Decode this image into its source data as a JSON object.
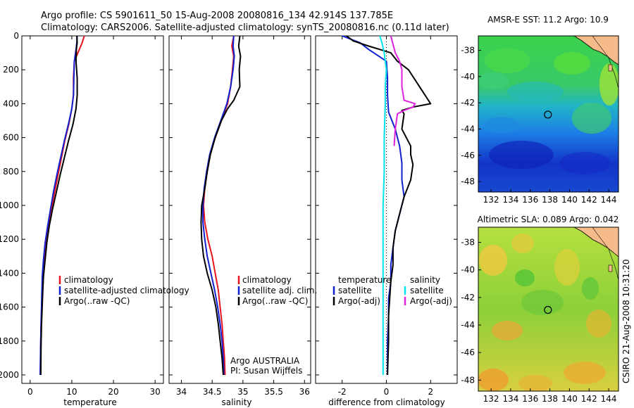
{
  "header": {
    "line1": "Argo profile: CS 5901611_50 15-Aug-2008 20080816_134 42.914S 137.785E",
    "line2": "Climatology: CARS2006. Satellite-adjusted climatology: synTS_20080816.nc (0.11d later)"
  },
  "side_label": "CSIRO 21-Aug-2008 10:31:20",
  "colors": {
    "red": "#e8141e",
    "blue": "#1020d0",
    "black": "#000000",
    "cyan": "#00e5ee",
    "magenta": "#e020e0",
    "land": "#f6bb8a"
  },
  "chart_data": [
    {
      "type": "line",
      "xlabel": "temperature",
      "xlim": [
        -2,
        32
      ],
      "ylim": [
        2050,
        0
      ],
      "xticks": [
        0,
        10,
        20,
        30
      ],
      "yticks": [
        0,
        200,
        400,
        600,
        800,
        1000,
        1200,
        1400,
        1600,
        1800,
        2000
      ],
      "series": [
        {
          "name": "climatology",
          "color": "#e8141e",
          "points": [
            [
              13,
              0
            ],
            [
              12.5,
              40
            ],
            [
              11.8,
              80
            ],
            [
              10.6,
              150
            ],
            [
              10.4,
              250
            ],
            [
              10.4,
              350
            ],
            [
              10,
              430
            ],
            [
              9.3,
              520
            ],
            [
              8.3,
              620
            ],
            [
              7.5,
              720
            ],
            [
              6.7,
              820
            ],
            [
              5.9,
              920
            ],
            [
              5.1,
              1020
            ],
            [
              4.4,
              1120
            ],
            [
              3.8,
              1220
            ],
            [
              3.4,
              1320
            ],
            [
              3.1,
              1420
            ],
            [
              2.9,
              1520
            ],
            [
              2.75,
              1620
            ],
            [
              2.6,
              1720
            ],
            [
              2.5,
              1850
            ],
            [
              2.45,
              2000
            ]
          ]
        },
        {
          "name": "satellite-adjusted climatology",
          "color": "#1020d0",
          "points": [
            [
              11.3,
              0
            ],
            [
              11.2,
              40
            ],
            [
              11,
              80
            ],
            [
              10.6,
              150
            ],
            [
              10.5,
              250
            ],
            [
              10.4,
              350
            ],
            [
              10,
              430
            ],
            [
              9.2,
              520
            ],
            [
              8.2,
              620
            ],
            [
              7.3,
              720
            ],
            [
              6.4,
              820
            ],
            [
              5.6,
              920
            ],
            [
              4.9,
              1020
            ],
            [
              4.2,
              1120
            ],
            [
              3.6,
              1220
            ],
            [
              3.2,
              1320
            ],
            [
              2.9,
              1420
            ],
            [
              2.8,
              1520
            ],
            [
              2.7,
              1620
            ],
            [
              2.6,
              1720
            ],
            [
              2.5,
              1850
            ],
            [
              2.4,
              2000
            ]
          ]
        },
        {
          "name": "Argo(..raw -QC)",
          "color": "#000000",
          "points": [
            [
              11.2,
              0
            ],
            [
              11.3,
              40
            ],
            [
              11.1,
              80
            ],
            [
              11,
              150
            ],
            [
              11.3,
              250
            ],
            [
              11.3,
              350
            ],
            [
              11,
              430
            ],
            [
              10.3,
              520
            ],
            [
              9.2,
              620
            ],
            [
              8.2,
              720
            ],
            [
              7.2,
              820
            ],
            [
              6.3,
              920
            ],
            [
              5.4,
              1020
            ],
            [
              4.6,
              1120
            ],
            [
              4,
              1220
            ],
            [
              3.6,
              1320
            ],
            [
              3.2,
              1420
            ],
            [
              3,
              1520
            ],
            [
              2.85,
              1620
            ],
            [
              2.7,
              1720
            ],
            [
              2.6,
              1850
            ],
            [
              2.55,
              2000
            ]
          ]
        }
      ]
    },
    {
      "type": "line",
      "xlabel": "salinity",
      "xlim": [
        33.8,
        36.1
      ],
      "ylim": [
        2050,
        0
      ],
      "xticks": [
        34,
        34.5,
        35,
        35.5,
        36
      ],
      "xtick_labels": [
        "34",
        "34.5",
        "35",
        "35.5",
        "36"
      ],
      "series": [
        {
          "name": "climatology",
          "color": "#e8141e",
          "points": [
            [
              34.85,
              0
            ],
            [
              34.82,
              60
            ],
            [
              34.85,
              120
            ],
            [
              34.83,
              200
            ],
            [
              34.8,
              300
            ],
            [
              34.75,
              400
            ],
            [
              34.65,
              500
            ],
            [
              34.55,
              600
            ],
            [
              34.47,
              700
            ],
            [
              34.42,
              800
            ],
            [
              34.38,
              900
            ],
            [
              34.36,
              1000
            ],
            [
              34.38,
              1100
            ],
            [
              34.43,
              1200
            ],
            [
              34.5,
              1300
            ],
            [
              34.55,
              1400
            ],
            [
              34.6,
              1500
            ],
            [
              34.63,
              1600
            ],
            [
              34.66,
              1700
            ],
            [
              34.68,
              1800
            ],
            [
              34.7,
              1900
            ],
            [
              34.71,
              2000
            ]
          ]
        },
        {
          "name": "satellite adj. clim.",
          "color": "#1020d0",
          "points": [
            [
              34.85,
              0
            ],
            [
              34.84,
              60
            ],
            [
              34.86,
              120
            ],
            [
              34.84,
              200
            ],
            [
              34.8,
              300
            ],
            [
              34.74,
              400
            ],
            [
              34.64,
              500
            ],
            [
              34.54,
              600
            ],
            [
              34.46,
              700
            ],
            [
              34.41,
              800
            ],
            [
              34.37,
              900
            ],
            [
              34.35,
              1000
            ],
            [
              34.35,
              1100
            ],
            [
              34.38,
              1200
            ],
            [
              34.42,
              1300
            ],
            [
              34.48,
              1400
            ],
            [
              34.54,
              1500
            ],
            [
              34.59,
              1600
            ],
            [
              34.63,
              1700
            ],
            [
              34.66,
              1800
            ],
            [
              34.68,
              1900
            ],
            [
              34.69,
              2000
            ]
          ]
        },
        {
          "name": "Argo(..raw -QC)",
          "color": "#000000",
          "points": [
            [
              34.95,
              0
            ],
            [
              34.93,
              60
            ],
            [
              34.96,
              120
            ],
            [
              34.94,
              200
            ],
            [
              34.95,
              300
            ],
            [
              34.85,
              380
            ],
            [
              34.75,
              430
            ],
            [
              34.65,
              500
            ],
            [
              34.55,
              600
            ],
            [
              34.47,
              700
            ],
            [
              34.42,
              800
            ],
            [
              34.38,
              900
            ],
            [
              34.33,
              1000
            ],
            [
              34.32,
              1100
            ],
            [
              34.33,
              1200
            ],
            [
              34.36,
              1300
            ],
            [
              34.42,
              1400
            ],
            [
              34.5,
              1500
            ],
            [
              34.56,
              1600
            ],
            [
              34.6,
              1700
            ],
            [
              34.63,
              1800
            ],
            [
              34.66,
              1900
            ],
            [
              34.68,
              2000
            ]
          ]
        }
      ],
      "annotation": [
        "Argo AUSTRALIA",
        "PI: Susan Wijffels"
      ]
    },
    {
      "type": "line",
      "xlabel": "difference from climatology",
      "xlim": [
        -3.2,
        3.2
      ],
      "ylim": [
        2050,
        0
      ],
      "xticks": [
        -2,
        0,
        2
      ],
      "legend_groups": [
        {
          "title": "temperature",
          "entries": [
            {
              "label": "satellite",
              "color": "#1020d0"
            },
            {
              "label": "Argo(-adj)",
              "color": "#000000"
            }
          ]
        },
        {
          "title": "salinity",
          "entries": [
            {
              "label": "satellite",
              "color": "#00e5ee"
            },
            {
              "label": "Argo(-adj)",
              "color": "#e020e0"
            }
          ]
        }
      ],
      "series": [
        {
          "name": "temperature satellite",
          "color": "#1020d0",
          "points": [
            [
              -2,
              0
            ],
            [
              -1.2,
              40
            ],
            [
              -0.8,
              80
            ],
            [
              0,
              150
            ],
            [
              0.05,
              250
            ],
            [
              0.05,
              350
            ],
            [
              0.1,
              450
            ],
            [
              0.4,
              550
            ],
            [
              0.6,
              650
            ],
            [
              0.7,
              750
            ],
            [
              0.7,
              850
            ],
            [
              0.8,
              950
            ],
            [
              0.6,
              1050
            ],
            [
              0.4,
              1150
            ],
            [
              0.3,
              1250
            ],
            [
              0.2,
              1350
            ],
            [
              0.2,
              1450
            ],
            [
              0.1,
              1550
            ],
            [
              0.1,
              1650
            ],
            [
              0.05,
              1800
            ],
            [
              0.05,
              2000
            ]
          ]
        },
        {
          "name": "temperature Argo(-adj)",
          "color": "#000000",
          "points": [
            [
              -1.8,
              0
            ],
            [
              -1.5,
              30
            ],
            [
              -0.8,
              60
            ],
            [
              0.2,
              100
            ],
            [
              0.5,
              150
            ],
            [
              1.0,
              200
            ],
            [
              1.5,
              300
            ],
            [
              2.0,
              400
            ],
            [
              1.2,
              420
            ],
            [
              0.7,
              440
            ],
            [
              0.8,
              460
            ],
            [
              0.7,
              550
            ],
            [
              1.1,
              650
            ],
            [
              1.1,
              700
            ],
            [
              1.2,
              760
            ],
            [
              1.1,
              850
            ],
            [
              0.8,
              950
            ],
            [
              0.6,
              1050
            ],
            [
              0.4,
              1150
            ],
            [
              0.3,
              1250
            ],
            [
              0.3,
              1350
            ],
            [
              0.2,
              1450
            ],
            [
              0.15,
              1550
            ],
            [
              0.1,
              1650
            ],
            [
              0.1,
              1800
            ],
            [
              0.05,
              2000
            ]
          ]
        },
        {
          "name": "salinity satellite",
          "color": "#00e5ee",
          "points": [
            [
              -0.3,
              0
            ],
            [
              -0.2,
              40
            ],
            [
              -0.1,
              100
            ],
            [
              0,
              200
            ],
            [
              -0.05,
              300
            ],
            [
              -0.05,
              400
            ],
            [
              -0.1,
              600
            ],
            [
              -0.1,
              800
            ],
            [
              -0.15,
              1000
            ],
            [
              -0.15,
              1200
            ],
            [
              -0.15,
              1400
            ],
            [
              -0.15,
              1600
            ],
            [
              -0.15,
              1800
            ],
            [
              -0.15,
              2000
            ]
          ]
        },
        {
          "name": "salinity Argo(-adj)",
          "color": "#e020e0",
          "points": [
            [
              0.2,
              0
            ],
            [
              0.3,
              50
            ],
            [
              0.4,
              100
            ],
            [
              0.6,
              150
            ],
            [
              0.7,
              200
            ],
            [
              0.7,
              300
            ],
            [
              0.8,
              380
            ],
            [
              1.3,
              400
            ],
            [
              1.2,
              420
            ],
            [
              0.8,
              440
            ],
            [
              0.5,
              460
            ],
            [
              0.4,
              550
            ],
            [
              0.35,
              650
            ]
          ]
        }
      ]
    }
  ],
  "maps": [
    {
      "title": "AMSR-E SST: 11.2 Argo: 10.9",
      "xticks": [
        132,
        134,
        136,
        138,
        140,
        142,
        144
      ],
      "yticks": [
        -38,
        -40,
        -42,
        -44,
        -46,
        -48
      ],
      "xlim": [
        130.7,
        145
      ],
      "ylim": [
        -48.8,
        -36.9
      ],
      "marker": [
        137.8,
        -42.9
      ]
    },
    {
      "title": "Altimetric SLA: 0.089 Argo: 0.042",
      "xticks": [
        132,
        134,
        136,
        138,
        140,
        142,
        144
      ],
      "yticks": [
        -38,
        -40,
        -42,
        -44,
        -46,
        -48
      ],
      "xlim": [
        130.7,
        145
      ],
      "ylim": [
        -48.8,
        -36.9
      ],
      "marker": [
        137.8,
        -42.9
      ]
    }
  ]
}
